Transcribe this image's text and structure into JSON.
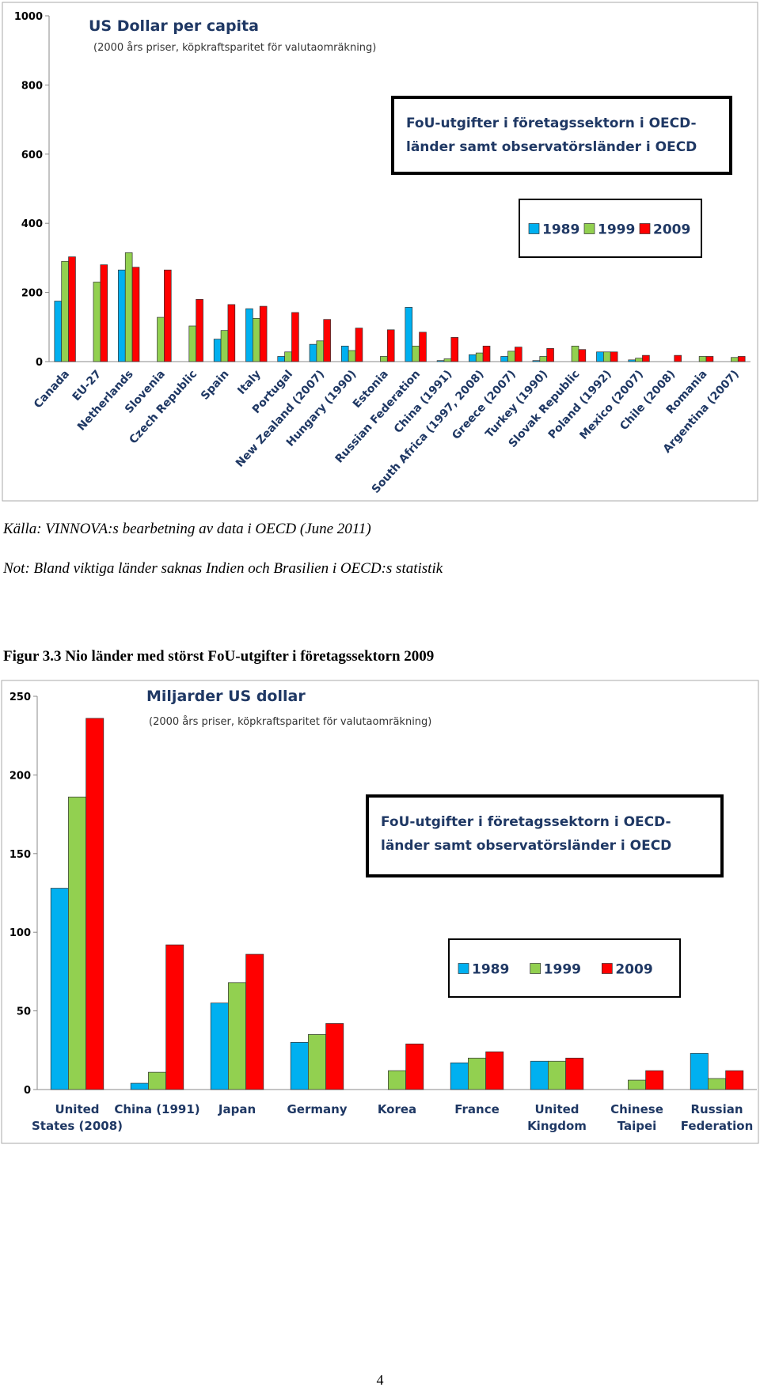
{
  "chart_data": [
    {
      "type": "bar",
      "title": "US Dollar per capita",
      "subtitle": "(2000 års priser, köpkraftsparitet för valutaomräkning)",
      "annotation": [
        "FoU-utgifter i företagssektorn i OECD-",
        "länder samt observatörsländer i OECD"
      ],
      "categories": [
        "Canada",
        "EU-27",
        "Netherlands",
        "Slovenia",
        "Czech Republic",
        "Spain",
        "Italy",
        "Portugal",
        "New Zealand (2007)",
        "Hungary (1990)",
        "Estonia",
        "Russian Federation",
        "China (1991)",
        "South Africa (1997, 2008)",
        "Greece (2007)",
        "Turkey (1990)",
        "Slovak Republic",
        "Poland (1992)",
        "Mexico (2007)",
        "Chile (2008)",
        "Romania",
        "Argentina (2007)"
      ],
      "series": [
        {
          "name": "1989",
          "color": "#00b0f0",
          "values": [
            175,
            null,
            265,
            null,
            null,
            65,
            153,
            15,
            50,
            45,
            null,
            157,
            3,
            20,
            15,
            3,
            null,
            28,
            5,
            null,
            null,
            null
          ]
        },
        {
          "name": "1999",
          "color": "#92d050",
          "values": [
            290,
            230,
            315,
            128,
            103,
            90,
            125,
            28,
            60,
            32,
            15,
            45,
            8,
            25,
            30,
            15,
            45,
            28,
            10,
            null,
            15,
            12
          ]
        },
        {
          "name": "2009",
          "color": "#ff0000",
          "values": [
            303,
            280,
            273,
            265,
            180,
            165,
            160,
            142,
            122,
            97,
            92,
            85,
            70,
            45,
            42,
            38,
            35,
            28,
            18,
            18,
            15,
            15
          ]
        }
      ],
      "ylim": [
        0,
        1000
      ],
      "yticks": [
        0,
        200,
        400,
        600,
        800,
        1000
      ]
    },
    {
      "type": "bar",
      "title": "Miljarder US dollar",
      "subtitle": "(2000 års priser, köpkraftsparitet för valutaomräkning)",
      "annotation": [
        "FoU-utgifter i företagssektorn i OECD-",
        "länder samt observatörsländer i OECD"
      ],
      "categories": [
        [
          "United",
          "States (2008)"
        ],
        [
          "China (1991)"
        ],
        [
          "Japan"
        ],
        [
          "Germany"
        ],
        [
          "Korea"
        ],
        [
          "France"
        ],
        [
          "United",
          "Kingdom"
        ],
        [
          "Chinese",
          "Taipei"
        ],
        [
          "Russian",
          "Federation"
        ]
      ],
      "series": [
        {
          "name": "1989",
          "color": "#00b0f0",
          "values": [
            128,
            4,
            55,
            30,
            null,
            17,
            18,
            null,
            23
          ]
        },
        {
          "name": "1999",
          "color": "#92d050",
          "values": [
            186,
            11,
            68,
            35,
            12,
            20,
            18,
            6,
            7
          ]
        },
        {
          "name": "2009",
          "color": "#ff0000",
          "values": [
            236,
            92,
            86,
            42,
            29,
            24,
            20,
            12,
            12
          ]
        }
      ],
      "ylim": [
        0,
        250
      ],
      "yticks": [
        0,
        50,
        100,
        150,
        200,
        250
      ]
    }
  ],
  "document": {
    "source": "Källa: VINNOVA:s bearbetning av data i OECD (June 2011)",
    "note": "Not: Bland viktiga länder saknas Indien och Brasilien i OECD:s statistik",
    "figure_caption": "Figur 3.3 Nio länder med störst FoU-utgifter i företagssektorn 2009",
    "page_number": "4"
  }
}
